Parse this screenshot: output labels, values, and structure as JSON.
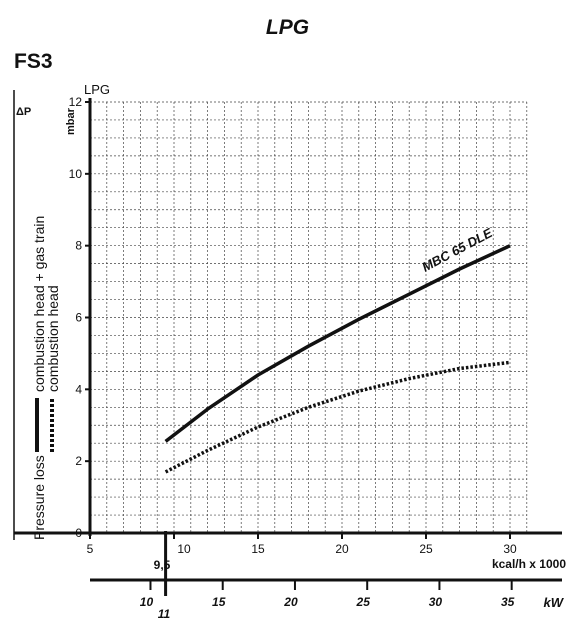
{
  "title": "LPG",
  "subtitle": "FS3",
  "chart_data": {
    "type": "line",
    "grid": true,
    "x_primary": {
      "label": "kcal/h x 1000",
      "range": [
        5,
        30
      ],
      "ticks": [
        "5",
        "10",
        "15",
        "20",
        "25",
        "30"
      ],
      "extra_tick": "9,5"
    },
    "x_secondary": {
      "label": "kW",
      "ticks": [
        "10",
        "15",
        "20",
        "25",
        "30",
        "35"
      ],
      "extra_tick": "11"
    },
    "y": {
      "range": [
        0,
        12
      ],
      "ticks": [
        "0",
        "2",
        "4",
        "6",
        "8",
        "10",
        "12"
      ],
      "unit": "mbar",
      "symbol": "ΔP",
      "fuel_label": "LPG"
    },
    "ylabel": {
      "prefix": "Pressure loss",
      "solid_legend": "combustion head + gas train",
      "dotted_legend": "combustion head"
    },
    "series": [
      {
        "name": "MBC 65 DLE",
        "style": "solid",
        "x": [
          9.5,
          12,
          15,
          18,
          21,
          24,
          27,
          30
        ],
        "y": [
          2.55,
          3.45,
          4.4,
          5.2,
          5.95,
          6.65,
          7.35,
          8.0
        ]
      },
      {
        "style": "dotted",
        "x": [
          9.5,
          12,
          15,
          18,
          21,
          24,
          27,
          30
        ],
        "y": [
          1.7,
          2.3,
          2.95,
          3.5,
          3.95,
          4.3,
          4.58,
          4.75
        ]
      }
    ]
  }
}
